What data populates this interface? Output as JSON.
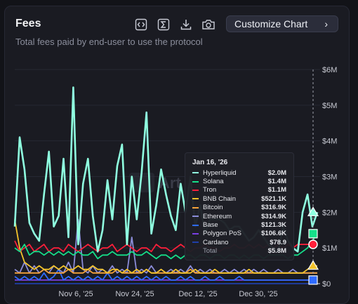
{
  "card": {
    "title": "Fees",
    "subtitle": "Total fees paid by end-user to use the protocol",
    "customize_label": "Customize Chart",
    "chevron": "›"
  },
  "toolbar_icons": [
    "embed-icon",
    "sigma-icon",
    "download-icon",
    "camera-icon"
  ],
  "watermark": "Art",
  "chart_data": {
    "type": "line",
    "y_ticks": [
      "$6M",
      "$5M",
      "$4M",
      "$3M",
      "$2M",
      "$1M",
      "$0"
    ],
    "y_tick_values": [
      6,
      5,
      4,
      3,
      2,
      1,
      0
    ],
    "x_tick_labels": [
      "Nov 6, '25",
      "Nov 24, '25",
      "Dec 12, '25",
      "Dec 30, '25"
    ],
    "ylim": [
      0,
      6
    ],
    "y_unit": "USD millions",
    "series": [
      {
        "name": "Hyperliquid",
        "color": "#8fffe0",
        "values": [
          1.6,
          4.1,
          3.2,
          1.7,
          1.4,
          1.2,
          2.5,
          3.7,
          1.6,
          1.9,
          3.5,
          1.3,
          5.5,
          1.1,
          2.8,
          3.5,
          1.9,
          0.9,
          1.5,
          2.9,
          1.8,
          3.3,
          3.9,
          1.1,
          3.0,
          1.8,
          3.1,
          4.8,
          1.4,
          2.2,
          3.2,
          2.5,
          1.9,
          1.5,
          2.8,
          2.0,
          3.0,
          1.6,
          2.2,
          1.4,
          1.8,
          1.8,
          1.8,
          1.7,
          1.5,
          1.6,
          1.6,
          1.4,
          1.2,
          1.3,
          1.5,
          1.3,
          1.1,
          1.0,
          0.9,
          1.6,
          1.2,
          1.0,
          0.9,
          2.0,
          2.5,
          1.6,
          2.0
        ]
      },
      {
        "name": "Solana",
        "color": "#15e08a",
        "values": [
          1.0,
          0.9,
          1.1,
          0.8,
          0.9,
          0.9,
          0.8,
          0.9,
          0.8,
          0.9,
          0.8,
          0.9,
          0.8,
          0.9,
          0.8,
          0.8,
          0.9,
          0.7,
          0.8,
          0.8,
          0.9,
          0.8,
          0.8,
          0.8,
          0.9,
          0.8,
          0.8,
          0.9,
          0.8,
          0.7,
          0.8,
          0.8,
          0.7,
          0.8,
          0.7,
          0.8,
          0.8,
          0.7,
          0.8,
          0.8,
          0.7,
          0.8,
          0.8,
          0.7,
          0.8,
          0.8,
          0.7,
          0.8,
          0.7,
          0.8,
          0.8,
          0.7,
          0.8,
          0.8,
          0.8,
          0.8,
          0.7,
          0.8,
          0.8,
          0.9,
          1.0,
          1.2,
          1.4
        ]
      },
      {
        "name": "Tron",
        "color": "#ff1f3a",
        "values": [
          1.2,
          0.9,
          1.0,
          1.1,
          0.9,
          1.0,
          1.1,
          0.9,
          1.0,
          1.0,
          0.9,
          1.1,
          1.0,
          0.9,
          1.0,
          1.1,
          1.0,
          0.9,
          1.0,
          1.0,
          1.1,
          0.9,
          1.0,
          1.1,
          1.0,
          0.9,
          1.0,
          1.0,
          0.9,
          1.1,
          1.0,
          1.0,
          0.9,
          1.0,
          1.1,
          1.0,
          0.9,
          1.0,
          1.0,
          1.1,
          1.0,
          1.0,
          0.9,
          1.0,
          1.0,
          1.1,
          1.0,
          1.0,
          1.1,
          1.0,
          1.1,
          1.0,
          1.1,
          1.0,
          1.1,
          1.0,
          1.1,
          1.0,
          1.1,
          1.1,
          1.1,
          1.1,
          1.1
        ]
      },
      {
        "name": "BNB Chain",
        "color": "#f3c32b",
        "values": [
          1.8,
          1.0,
          0.6,
          0.5,
          0.4,
          0.5,
          0.4,
          0.4,
          0.5,
          0.4,
          0.5,
          0.4,
          0.4,
          0.5,
          0.4,
          0.4,
          0.5,
          0.4,
          0.4,
          0.3,
          0.4,
          0.4,
          0.3,
          0.4,
          0.3,
          0.4,
          0.3,
          0.4,
          0.3,
          0.3,
          0.4,
          0.3,
          0.3,
          0.4,
          0.3,
          0.3,
          0.3,
          0.4,
          0.3,
          0.3,
          0.3,
          0.4,
          0.3,
          0.3,
          0.3,
          0.3,
          0.3,
          0.3,
          0.4,
          0.3,
          0.3,
          0.3,
          0.3,
          0.3,
          0.3,
          0.3,
          0.3,
          0.3,
          0.3,
          0.3,
          0.4,
          0.5,
          0.5
        ]
      },
      {
        "name": "Bitcoin",
        "color": "#f5a23a",
        "values": [
          0.3,
          0.3,
          0.3,
          0.3,
          0.3,
          0.3,
          0.4,
          0.3,
          0.3,
          0.3,
          0.3,
          0.4,
          0.3,
          0.3,
          0.3,
          0.4,
          0.3,
          0.3,
          0.3,
          0.3,
          0.3,
          0.4,
          0.3,
          0.3,
          0.3,
          0.3,
          0.3,
          0.4,
          0.3,
          0.3,
          0.3,
          0.3,
          0.3,
          0.3,
          0.3,
          0.3,
          0.4,
          0.3,
          0.3,
          0.3,
          0.3,
          0.3,
          0.3,
          0.3,
          0.3,
          0.3,
          0.3,
          0.3,
          0.3,
          0.3,
          0.3,
          0.3,
          0.3,
          0.3,
          0.3,
          0.3,
          0.3,
          0.3,
          0.3,
          0.3,
          0.3,
          0.3,
          0.3
        ]
      },
      {
        "name": "Ethereum",
        "color": "#8b8cd8",
        "values": [
          0.4,
          0.3,
          0.6,
          0.3,
          0.5,
          0.3,
          0.4,
          0.3,
          0.5,
          0.4,
          0.3,
          0.6,
          0.3,
          1.8,
          0.4,
          0.3,
          0.5,
          0.3,
          0.4,
          0.3,
          0.5,
          0.3,
          0.4,
          0.3,
          1.3,
          0.3,
          0.4,
          0.3,
          0.5,
          0.3,
          0.4,
          0.3,
          0.4,
          0.3,
          0.4,
          0.3,
          0.5,
          0.3,
          0.4,
          0.3,
          0.4,
          0.3,
          0.3,
          0.4,
          0.3,
          0.4,
          0.3,
          0.4,
          0.3,
          0.4,
          0.3,
          0.4,
          0.3,
          0.3,
          0.4,
          0.3,
          0.3,
          0.4,
          0.3,
          0.3,
          0.3,
          0.3,
          0.3
        ]
      },
      {
        "name": "Base",
        "color": "#2f6bff",
        "values": [
          0.2,
          0.1,
          0.2,
          0.1,
          0.2,
          0.1,
          0.3,
          0.1,
          0.2,
          0.4,
          0.1,
          0.2,
          0.1,
          0.2,
          0.1,
          0.2,
          0.1,
          0.2,
          0.1,
          0.3,
          0.1,
          0.2,
          0.1,
          0.2,
          0.1,
          0.2,
          0.1,
          0.2,
          0.1,
          0.2,
          0.1,
          0.2,
          0.1,
          0.1,
          0.2,
          0.1,
          0.2,
          0.1,
          0.1,
          0.2,
          0.1,
          0.1,
          0.2,
          0.1,
          0.1,
          0.1,
          0.2,
          0.1,
          0.1,
          0.1,
          0.1,
          0.1,
          0.1,
          0.1,
          0.1,
          0.1,
          0.1,
          0.1,
          0.1,
          0.1,
          0.1,
          0.1,
          0.1
        ]
      },
      {
        "name": "Polygon PoS",
        "color": "#7a3fe4",
        "values": [
          0.1,
          0.1,
          0.1,
          0.1,
          0.1,
          0.1,
          0.1,
          0.1,
          0.1,
          0.1,
          0.1,
          0.1,
          0.1,
          0.1,
          0.1,
          0.1,
          0.1,
          0.1,
          0.1,
          0.1,
          0.1,
          0.1,
          0.1,
          0.1,
          0.1,
          0.1,
          0.1,
          0.1,
          0.1,
          0.1,
          0.1,
          0.1,
          0.1,
          0.1,
          0.1,
          0.1,
          0.1,
          0.1,
          0.1,
          0.1,
          0.1,
          0.1,
          0.1,
          0.1,
          0.1,
          0.1,
          0.1,
          0.1,
          0.1,
          0.1,
          0.1,
          0.1,
          0.1,
          0.1,
          0.1,
          0.1,
          0.1,
          0.1,
          0.1,
          0.1,
          0.1,
          0.1,
          0.1
        ]
      },
      {
        "name": "Cardano",
        "color": "#1f3fa8",
        "values": [
          0.0,
          0.0,
          0.0,
          0.0,
          0.0,
          0.0,
          0.0,
          0.0,
          0.0,
          0.0,
          0.0,
          0.0,
          0.0,
          0.0,
          0.0,
          0.0,
          0.0,
          0.0,
          0.0,
          0.0,
          0.0,
          0.0,
          0.0,
          0.0,
          0.0,
          0.0,
          0.0,
          0.0,
          0.0,
          0.0,
          0.0,
          0.0,
          0.0,
          0.0,
          0.0,
          0.0,
          0.0,
          0.0,
          0.0,
          0.0,
          0.0,
          0.0,
          0.0,
          0.0,
          0.0,
          0.0,
          0.0,
          0.0,
          0.0,
          0.0,
          0.0,
          0.0,
          0.0,
          0.0,
          0.0,
          0.0,
          0.0,
          0.0,
          0.0,
          0.0,
          0.0,
          0.0,
          0.0
        ]
      }
    ],
    "end_markers": [
      {
        "series": "Hyperliquid",
        "shape": "triangle"
      },
      {
        "series": "Solana",
        "shape": "square"
      },
      {
        "series": "Tron",
        "shape": "circle"
      },
      {
        "series": "BNB Chain",
        "shape": "triangle"
      },
      {
        "series": "Base",
        "shape": "square"
      }
    ],
    "tooltip": {
      "date": "Jan 16, '26",
      "rows": [
        {
          "name": "Hyperliquid",
          "value": "$2.0M",
          "color": "#8fffe0"
        },
        {
          "name": "Solana",
          "value": "$1.4M",
          "color": "#15e08a"
        },
        {
          "name": "Tron",
          "value": "$1.1M",
          "color": "#ff1f3a"
        },
        {
          "name": "BNB Chain",
          "value": "$521.1K",
          "color": "#f3c32b"
        },
        {
          "name": "Bitcoin",
          "value": "$316.9K",
          "color": "#f5a23a"
        },
        {
          "name": "Ethereum",
          "value": "$314.9K",
          "color": "#8b8cd8"
        },
        {
          "name": "Base",
          "value": "$121.3K",
          "color": "#2f6bff"
        },
        {
          "name": "Polygon PoS",
          "value": "$106.6K",
          "color": "#7a3fe4"
        },
        {
          "name": "Cardano",
          "value": "$78.9",
          "color": "#1f3fa8"
        }
      ],
      "total_label": "Total",
      "total_value": "$5.8M"
    }
  }
}
